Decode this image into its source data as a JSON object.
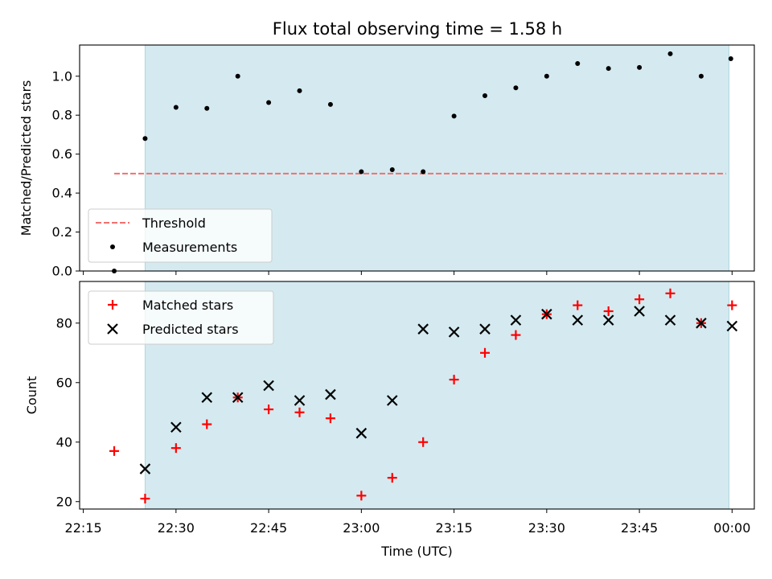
{
  "title": "Flux total observing time = 1.58 h",
  "colors": {
    "observing_span": "#d4eaf0",
    "threshold": "#f07070",
    "measurement": "#000000",
    "matched": "#ff0000",
    "predicted": "#000000"
  },
  "chart_data": [
    {
      "type": "scatter",
      "panel": "top",
      "ylabel": "Matched/Predicted stars",
      "xlabel": "",
      "ylim": [
        0.0,
        1.16
      ],
      "y_ticks": [
        0.0,
        0.2,
        0.4,
        0.6,
        0.8,
        1.0
      ],
      "y_tick_labels": [
        "0.0",
        "0.2",
        "0.4",
        "0.6",
        "0.8",
        "1.0"
      ],
      "grid": false,
      "legend_position": "lower-left",
      "observing_span": {
        "start": "22:25",
        "end": "23:59.5"
      },
      "threshold": {
        "name": "Threshold",
        "value": 0.5,
        "x_start": "22:20",
        "x_end": "23:59"
      },
      "series": [
        {
          "name": "Measurements",
          "x": [
            "22:20",
            "22:25",
            "22:30",
            "22:35",
            "22:40",
            "22:45",
            "22:50",
            "22:55",
            "23:00",
            "23:05",
            "23:10",
            "23:15",
            "23:20",
            "23:25",
            "23:30",
            "23:35",
            "23:40",
            "23:45",
            "23:50",
            "23:55",
            "23:59.8"
          ],
          "y": [
            0.0,
            0.68,
            0.84,
            0.835,
            1.0,
            0.865,
            0.925,
            0.855,
            0.51,
            0.52,
            0.51,
            0.795,
            0.9,
            0.94,
            1.0,
            1.065,
            1.04,
            1.045,
            1.115,
            1.0,
            1.09
          ]
        }
      ]
    },
    {
      "type": "scatter",
      "panel": "bottom",
      "ylabel": "Count",
      "xlabel": "Time (UTC)",
      "ylim": [
        17.5,
        94
      ],
      "y_ticks": [
        20,
        40,
        60,
        80
      ],
      "y_tick_labels": [
        "20",
        "40",
        "60",
        "80"
      ],
      "x_ticks": [
        "22:15",
        "22:30",
        "22:45",
        "23:00",
        "23:15",
        "23:30",
        "23:45",
        "00:00"
      ],
      "grid": false,
      "legend_position": "upper-left",
      "observing_span": {
        "start": "22:25",
        "end": "23:59.5"
      },
      "series": [
        {
          "name": "Matched stars",
          "marker": "plus",
          "x": [
            "22:20",
            "22:25",
            "22:30",
            "22:35",
            "22:40",
            "22:45",
            "22:50",
            "22:55",
            "23:00",
            "23:05",
            "23:10",
            "23:15",
            "23:20",
            "23:25",
            "23:30",
            "23:35",
            "23:40",
            "23:45",
            "23:50",
            "23:55",
            "00:00"
          ],
          "y": [
            37,
            21,
            38,
            46,
            55,
            51,
            50,
            48,
            22,
            28,
            40,
            61,
            70,
            76,
            83,
            86,
            84,
            88,
            90,
            80,
            86
          ]
        },
        {
          "name": "Predicted stars",
          "marker": "x",
          "x": [
            "22:25",
            "22:30",
            "22:35",
            "22:40",
            "22:45",
            "22:50",
            "22:55",
            "23:00",
            "23:05",
            "23:10",
            "23:15",
            "23:20",
            "23:25",
            "23:30",
            "23:35",
            "23:40",
            "23:45",
            "23:50",
            "23:55",
            "00:00"
          ],
          "y": [
            31,
            45,
            55,
            55,
            59,
            54,
            56,
            43,
            54,
            78,
            77,
            78,
            81,
            83,
            81,
            81,
            84,
            81,
            80,
            79
          ]
        }
      ]
    }
  ]
}
